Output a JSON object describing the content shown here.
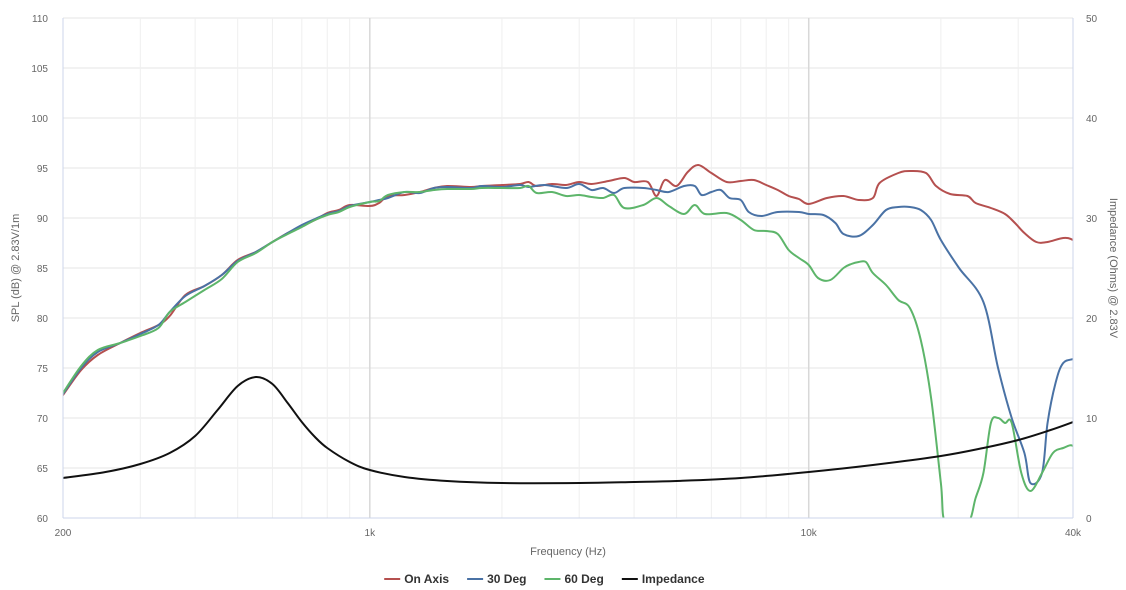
{
  "chart_data": {
    "type": "line",
    "title": "",
    "xlabel": "Frequency (Hz)",
    "ylabel": "SPL (dB) @ 2.83V/1m",
    "y2label": "Impedance (Ohms) @ 2.83V",
    "x_scale": "log",
    "xlim": [
      200,
      40000
    ],
    "ylim": [
      60,
      110
    ],
    "y2lim": [
      0,
      50
    ],
    "grid": true,
    "legend_position": "bottom-center",
    "x_ticks": [
      {
        "value": 200,
        "label": "200"
      },
      {
        "value": 1000,
        "label": "1k"
      },
      {
        "value": 10000,
        "label": "10k"
      },
      {
        "value": 40000,
        "label": "40k"
      }
    ],
    "y_ticks": [
      60,
      65,
      70,
      75,
      80,
      85,
      90,
      95,
      100,
      105,
      110
    ],
    "y2_ticks": [
      0,
      10,
      20,
      30,
      40,
      50
    ],
    "series": [
      {
        "name": "On Axis",
        "axis": "left",
        "color": "#b5504f",
        "points": [
          [
            200,
            72.3
          ],
          [
            220,
            74.8
          ],
          [
            240,
            76.3
          ],
          [
            270,
            77.5
          ],
          [
            300,
            78.5
          ],
          [
            330,
            79.3
          ],
          [
            350,
            80.2
          ],
          [
            380,
            82.3
          ],
          [
            420,
            83.2
          ],
          [
            460,
            84.3
          ],
          [
            500,
            85.8
          ],
          [
            550,
            86.6
          ],
          [
            600,
            87.6
          ],
          [
            650,
            88.5
          ],
          [
            700,
            89.2
          ],
          [
            750,
            89.8
          ],
          [
            800,
            90.5
          ],
          [
            850,
            90.8
          ],
          [
            900,
            91.3
          ],
          [
            1000,
            91.2
          ],
          [
            1050,
            91.5
          ],
          [
            1100,
            92.2
          ],
          [
            1200,
            92.3
          ],
          [
            1300,
            92.6
          ],
          [
            1400,
            93.0
          ],
          [
            1500,
            93.2
          ],
          [
            1700,
            93.1
          ],
          [
            1800,
            93.2
          ],
          [
            2000,
            93.3
          ],
          [
            2200,
            93.4
          ],
          [
            2300,
            93.6
          ],
          [
            2400,
            93.2
          ],
          [
            2600,
            93.4
          ],
          [
            2800,
            93.3
          ],
          [
            3000,
            93.6
          ],
          [
            3200,
            93.4
          ],
          [
            3500,
            93.7
          ],
          [
            3800,
            94.0
          ],
          [
            4000,
            93.6
          ],
          [
            4300,
            93.6
          ],
          [
            4500,
            92.2
          ],
          [
            4700,
            93.8
          ],
          [
            5000,
            93.2
          ],
          [
            5300,
            94.6
          ],
          [
            5600,
            95.3
          ],
          [
            6000,
            94.5
          ],
          [
            6500,
            93.6
          ],
          [
            7000,
            93.7
          ],
          [
            7500,
            93.8
          ],
          [
            8000,
            93.3
          ],
          [
            8500,
            92.8
          ],
          [
            9000,
            92.2
          ],
          [
            9500,
            91.9
          ],
          [
            10000,
            91.4
          ],
          [
            11000,
            92.0
          ],
          [
            12000,
            92.2
          ],
          [
            13000,
            91.8
          ],
          [
            14000,
            92.0
          ],
          [
            14500,
            93.5
          ],
          [
            16000,
            94.5
          ],
          [
            17000,
            94.7
          ],
          [
            18500,
            94.5
          ],
          [
            19500,
            93.2
          ],
          [
            21000,
            92.4
          ],
          [
            23000,
            92.2
          ],
          [
            24000,
            91.5
          ],
          [
            26000,
            91.0
          ],
          [
            28000,
            90.4
          ],
          [
            29500,
            89.5
          ],
          [
            31000,
            88.5
          ],
          [
            33000,
            87.6
          ],
          [
            35000,
            87.6
          ],
          [
            38000,
            88.0
          ],
          [
            40000,
            87.8
          ],
          [
            43000,
            86.8
          ],
          [
            46000,
            84.5
          ]
        ]
      },
      {
        "name": "30 Deg",
        "axis": "left",
        "color": "#4a72a5",
        "points": [
          [
            200,
            72.4
          ],
          [
            220,
            75.0
          ],
          [
            240,
            76.6
          ],
          [
            270,
            77.5
          ],
          [
            300,
            78.4
          ],
          [
            330,
            79.3
          ],
          [
            350,
            80.6
          ],
          [
            380,
            82.2
          ],
          [
            420,
            83.2
          ],
          [
            460,
            84.3
          ],
          [
            500,
            85.7
          ],
          [
            550,
            86.6
          ],
          [
            600,
            87.6
          ],
          [
            650,
            88.5
          ],
          [
            700,
            89.3
          ],
          [
            750,
            89.9
          ],
          [
            800,
            90.4
          ],
          [
            850,
            90.7
          ],
          [
            900,
            91.2
          ],
          [
            1000,
            91.6
          ],
          [
            1050,
            91.8
          ],
          [
            1100,
            92.0
          ],
          [
            1200,
            92.6
          ],
          [
            1300,
            92.5
          ],
          [
            1400,
            93.0
          ],
          [
            1500,
            93.1
          ],
          [
            1700,
            93.0
          ],
          [
            1800,
            93.2
          ],
          [
            2000,
            93.1
          ],
          [
            2200,
            93.3
          ],
          [
            2300,
            93.1
          ],
          [
            2500,
            93.3
          ],
          [
            2800,
            93.0
          ],
          [
            3000,
            93.4
          ],
          [
            3200,
            92.8
          ],
          [
            3400,
            93.0
          ],
          [
            3600,
            92.5
          ],
          [
            3800,
            93.0
          ],
          [
            4200,
            93.0
          ],
          [
            4500,
            92.8
          ],
          [
            4800,
            92.6
          ],
          [
            5200,
            93.2
          ],
          [
            5500,
            93.2
          ],
          [
            5700,
            92.3
          ],
          [
            6000,
            92.6
          ],
          [
            6300,
            92.8
          ],
          [
            6600,
            92.0
          ],
          [
            7000,
            91.8
          ],
          [
            7300,
            90.6
          ],
          [
            7800,
            90.2
          ],
          [
            8500,
            90.6
          ],
          [
            9500,
            90.6
          ],
          [
            10000,
            90.4
          ],
          [
            10800,
            90.3
          ],
          [
            11500,
            89.5
          ],
          [
            12000,
            88.4
          ],
          [
            13000,
            88.2
          ],
          [
            14000,
            89.3
          ],
          [
            15000,
            90.8
          ],
          [
            16000,
            91.1
          ],
          [
            17000,
            91.1
          ],
          [
            18000,
            90.8
          ],
          [
            19000,
            89.8
          ],
          [
            20000,
            87.8
          ],
          [
            22000,
            85.0
          ],
          [
            25000,
            81.6
          ],
          [
            27000,
            75.0
          ],
          [
            29000,
            70.0
          ],
          [
            31000,
            66.5
          ],
          [
            32000,
            63.5
          ],
          [
            34000,
            64.5
          ],
          [
            35000,
            69.5
          ],
          [
            36500,
            73.5
          ],
          [
            38000,
            75.5
          ],
          [
            40500,
            76.0
          ],
          [
            42500,
            77.0
          ],
          [
            44000,
            79.3
          ],
          [
            45500,
            79.3
          ],
          [
            47000,
            77.0
          ],
          [
            50000,
            70.5
          ]
        ]
      },
      {
        "name": "60 Deg",
        "axis": "left",
        "color": "#5db56a",
        "points": [
          [
            200,
            72.5
          ],
          [
            220,
            75.2
          ],
          [
            240,
            76.8
          ],
          [
            270,
            77.5
          ],
          [
            300,
            78.2
          ],
          [
            330,
            79.0
          ],
          [
            350,
            80.6
          ],
          [
            380,
            81.6
          ],
          [
            420,
            82.8
          ],
          [
            460,
            83.9
          ],
          [
            500,
            85.6
          ],
          [
            550,
            86.5
          ],
          [
            600,
            87.6
          ],
          [
            650,
            88.4
          ],
          [
            700,
            89.1
          ],
          [
            750,
            89.8
          ],
          [
            800,
            90.3
          ],
          [
            850,
            90.6
          ],
          [
            900,
            91.1
          ],
          [
            1000,
            91.6
          ],
          [
            1050,
            91.7
          ],
          [
            1100,
            92.3
          ],
          [
            1200,
            92.6
          ],
          [
            1300,
            92.6
          ],
          [
            1400,
            92.8
          ],
          [
            1500,
            92.9
          ],
          [
            1700,
            92.9
          ],
          [
            1800,
            93.0
          ],
          [
            2000,
            93.0
          ],
          [
            2200,
            93.0
          ],
          [
            2300,
            93.2
          ],
          [
            2400,
            92.5
          ],
          [
            2600,
            92.6
          ],
          [
            2800,
            92.2
          ],
          [
            3000,
            92.3
          ],
          [
            3200,
            92.1
          ],
          [
            3400,
            92.0
          ],
          [
            3600,
            92.3
          ],
          [
            3800,
            91.0
          ],
          [
            4200,
            91.3
          ],
          [
            4500,
            92.0
          ],
          [
            4800,
            91.2
          ],
          [
            5200,
            90.4
          ],
          [
            5500,
            91.3
          ],
          [
            5800,
            90.4
          ],
          [
            6500,
            90.5
          ],
          [
            7000,
            89.8
          ],
          [
            7500,
            88.8
          ],
          [
            8000,
            88.7
          ],
          [
            8500,
            88.4
          ],
          [
            9000,
            86.8
          ],
          [
            9500,
            86.0
          ],
          [
            10000,
            85.3
          ],
          [
            10500,
            84.0
          ],
          [
            11200,
            83.8
          ],
          [
            12000,
            85.0
          ],
          [
            12500,
            85.4
          ],
          [
            13000,
            85.6
          ],
          [
            13500,
            85.6
          ],
          [
            14000,
            84.5
          ],
          [
            15000,
            83.3
          ],
          [
            16000,
            81.8
          ],
          [
            17000,
            81.0
          ],
          [
            18000,
            77.8
          ],
          [
            19000,
            72.0
          ],
          [
            20000,
            63.5
          ],
          [
            20500,
            59.5
          ],
          [
            23000,
            59.5
          ],
          [
            24000,
            62.0
          ],
          [
            25000,
            64.5
          ],
          [
            26000,
            69.5
          ],
          [
            27000,
            70.0
          ],
          [
            28000,
            69.5
          ],
          [
            29000,
            69.5
          ],
          [
            30500,
            64.5
          ],
          [
            32000,
            62.7
          ],
          [
            34000,
            64.5
          ],
          [
            36000,
            66.5
          ],
          [
            38000,
            67.0
          ],
          [
            40000,
            67.2
          ],
          [
            42000,
            65.8
          ],
          [
            44000,
            69.0
          ],
          [
            45000,
            69.5
          ],
          [
            46000,
            64.0
          ],
          [
            48000,
            62.8
          ],
          [
            50000,
            62.7
          ]
        ]
      },
      {
        "name": "Impedance",
        "axis": "right",
        "color": "#111111",
        "points": [
          [
            200,
            4.0
          ],
          [
            250,
            4.6
          ],
          [
            300,
            5.4
          ],
          [
            350,
            6.5
          ],
          [
            400,
            8.2
          ],
          [
            450,
            10.8
          ],
          [
            500,
            13.2
          ],
          [
            550,
            14.1
          ],
          [
            600,
            13.4
          ],
          [
            650,
            11.5
          ],
          [
            700,
            9.6
          ],
          [
            750,
            8.1
          ],
          [
            800,
            7.0
          ],
          [
            900,
            5.6
          ],
          [
            1000,
            4.8
          ],
          [
            1200,
            4.1
          ],
          [
            1500,
            3.7
          ],
          [
            2000,
            3.5
          ],
          [
            3000,
            3.5
          ],
          [
            4000,
            3.6
          ],
          [
            5000,
            3.7
          ],
          [
            7000,
            4.0
          ],
          [
            10000,
            4.6
          ],
          [
            14000,
            5.3
          ],
          [
            20000,
            6.2
          ],
          [
            25000,
            7.0
          ],
          [
            30000,
            7.8
          ],
          [
            35000,
            8.7
          ],
          [
            40000,
            9.6
          ],
          [
            45000,
            10.5
          ],
          [
            50000,
            11.2
          ]
        ]
      }
    ]
  }
}
